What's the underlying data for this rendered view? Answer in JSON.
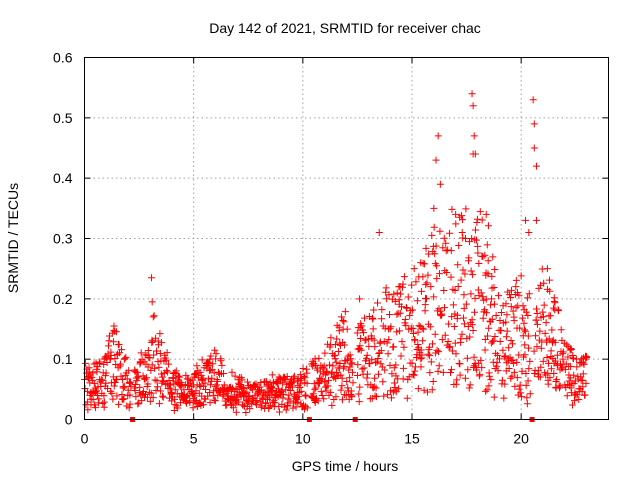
{
  "chart_data": {
    "type": "scatter",
    "title": "Day 142 of 2021, SRMTID for receiver chac",
    "xlabel": "GPS time / hours",
    "ylabel": "SRMTID / TECUs",
    "xlim": [
      0,
      24
    ],
    "ylim": [
      0,
      0.6
    ],
    "grid": true,
    "marker": "+",
    "color": "#ff0000",
    "x_ticks": [
      0,
      5,
      10,
      15,
      20
    ],
    "x_tick_labels": [
      "0",
      "5",
      "10",
      "15",
      "20"
    ],
    "y_ticks": [
      0,
      0.1,
      0.2,
      0.3,
      0.4,
      0.5,
      0.6
    ],
    "y_tick_labels": [
      "0",
      "0.1",
      "0.2",
      "0.3",
      "0.4",
      "0.5",
      "0.6"
    ],
    "data_gaps_hours": [
      2.2,
      10.3,
      12.4,
      20.5
    ],
    "trend": [
      [
        0.0,
        0.055
      ],
      [
        0.5,
        0.06
      ],
      [
        1.0,
        0.07
      ],
      [
        1.3,
        0.1
      ],
      [
        1.8,
        0.07
      ],
      [
        2.2,
        0.05
      ],
      [
        2.7,
        0.07
      ],
      [
        3.1,
        0.11
      ],
      [
        3.6,
        0.09
      ],
      [
        4.0,
        0.05
      ],
      [
        4.5,
        0.045
      ],
      [
        5.0,
        0.05
      ],
      [
        5.5,
        0.06
      ],
      [
        6.0,
        0.07
      ],
      [
        6.5,
        0.055
      ],
      [
        7.0,
        0.045
      ],
      [
        7.5,
        0.04
      ],
      [
        8.0,
        0.04
      ],
      [
        8.5,
        0.04
      ],
      [
        9.0,
        0.045
      ],
      [
        9.5,
        0.05
      ],
      [
        10.0,
        0.05
      ],
      [
        10.5,
        0.065
      ],
      [
        11.0,
        0.07
      ],
      [
        11.5,
        0.09
      ],
      [
        12.0,
        0.1
      ],
      [
        12.5,
        0.09
      ],
      [
        13.0,
        0.1
      ],
      [
        13.5,
        0.13
      ],
      [
        14.0,
        0.12
      ],
      [
        14.5,
        0.14
      ],
      [
        15.0,
        0.13
      ],
      [
        15.5,
        0.16
      ],
      [
        16.0,
        0.19
      ],
      [
        16.5,
        0.2
      ],
      [
        17.0,
        0.21
      ],
      [
        17.5,
        0.2
      ],
      [
        18.0,
        0.2
      ],
      [
        18.5,
        0.18
      ],
      [
        19.0,
        0.13
      ],
      [
        19.5,
        0.12
      ],
      [
        20.0,
        0.14
      ],
      [
        20.5,
        0.12
      ],
      [
        21.0,
        0.15
      ],
      [
        21.5,
        0.13
      ],
      [
        22.0,
        0.08
      ],
      [
        22.5,
        0.07
      ],
      [
        23.0,
        0.07
      ]
    ],
    "spikes": [
      [
        3.07,
        0.235
      ],
      [
        3.1,
        0.195
      ],
      [
        3.15,
        0.17
      ],
      [
        1.35,
        0.155
      ],
      [
        12.6,
        0.2
      ],
      [
        13.5,
        0.31
      ],
      [
        14.4,
        0.22
      ],
      [
        15.1,
        0.25
      ],
      [
        15.4,
        0.26
      ],
      [
        16.0,
        0.35
      ],
      [
        16.1,
        0.43
      ],
      [
        16.2,
        0.47
      ],
      [
        16.3,
        0.39
      ],
      [
        16.8,
        0.28
      ],
      [
        17.0,
        0.34
      ],
      [
        17.3,
        0.31
      ],
      [
        17.45,
        0.3
      ],
      [
        17.75,
        0.54
      ],
      [
        17.8,
        0.52
      ],
      [
        17.8,
        0.44
      ],
      [
        17.85,
        0.47
      ],
      [
        17.9,
        0.44
      ],
      [
        18.25,
        0.27
      ],
      [
        18.4,
        0.34
      ],
      [
        18.6,
        0.19
      ],
      [
        20.2,
        0.33
      ],
      [
        20.35,
        0.31
      ],
      [
        20.55,
        0.53
      ],
      [
        20.6,
        0.49
      ],
      [
        20.6,
        0.45
      ],
      [
        20.7,
        0.42
      ],
      [
        20.7,
        0.33
      ],
      [
        21.2,
        0.25
      ]
    ]
  }
}
